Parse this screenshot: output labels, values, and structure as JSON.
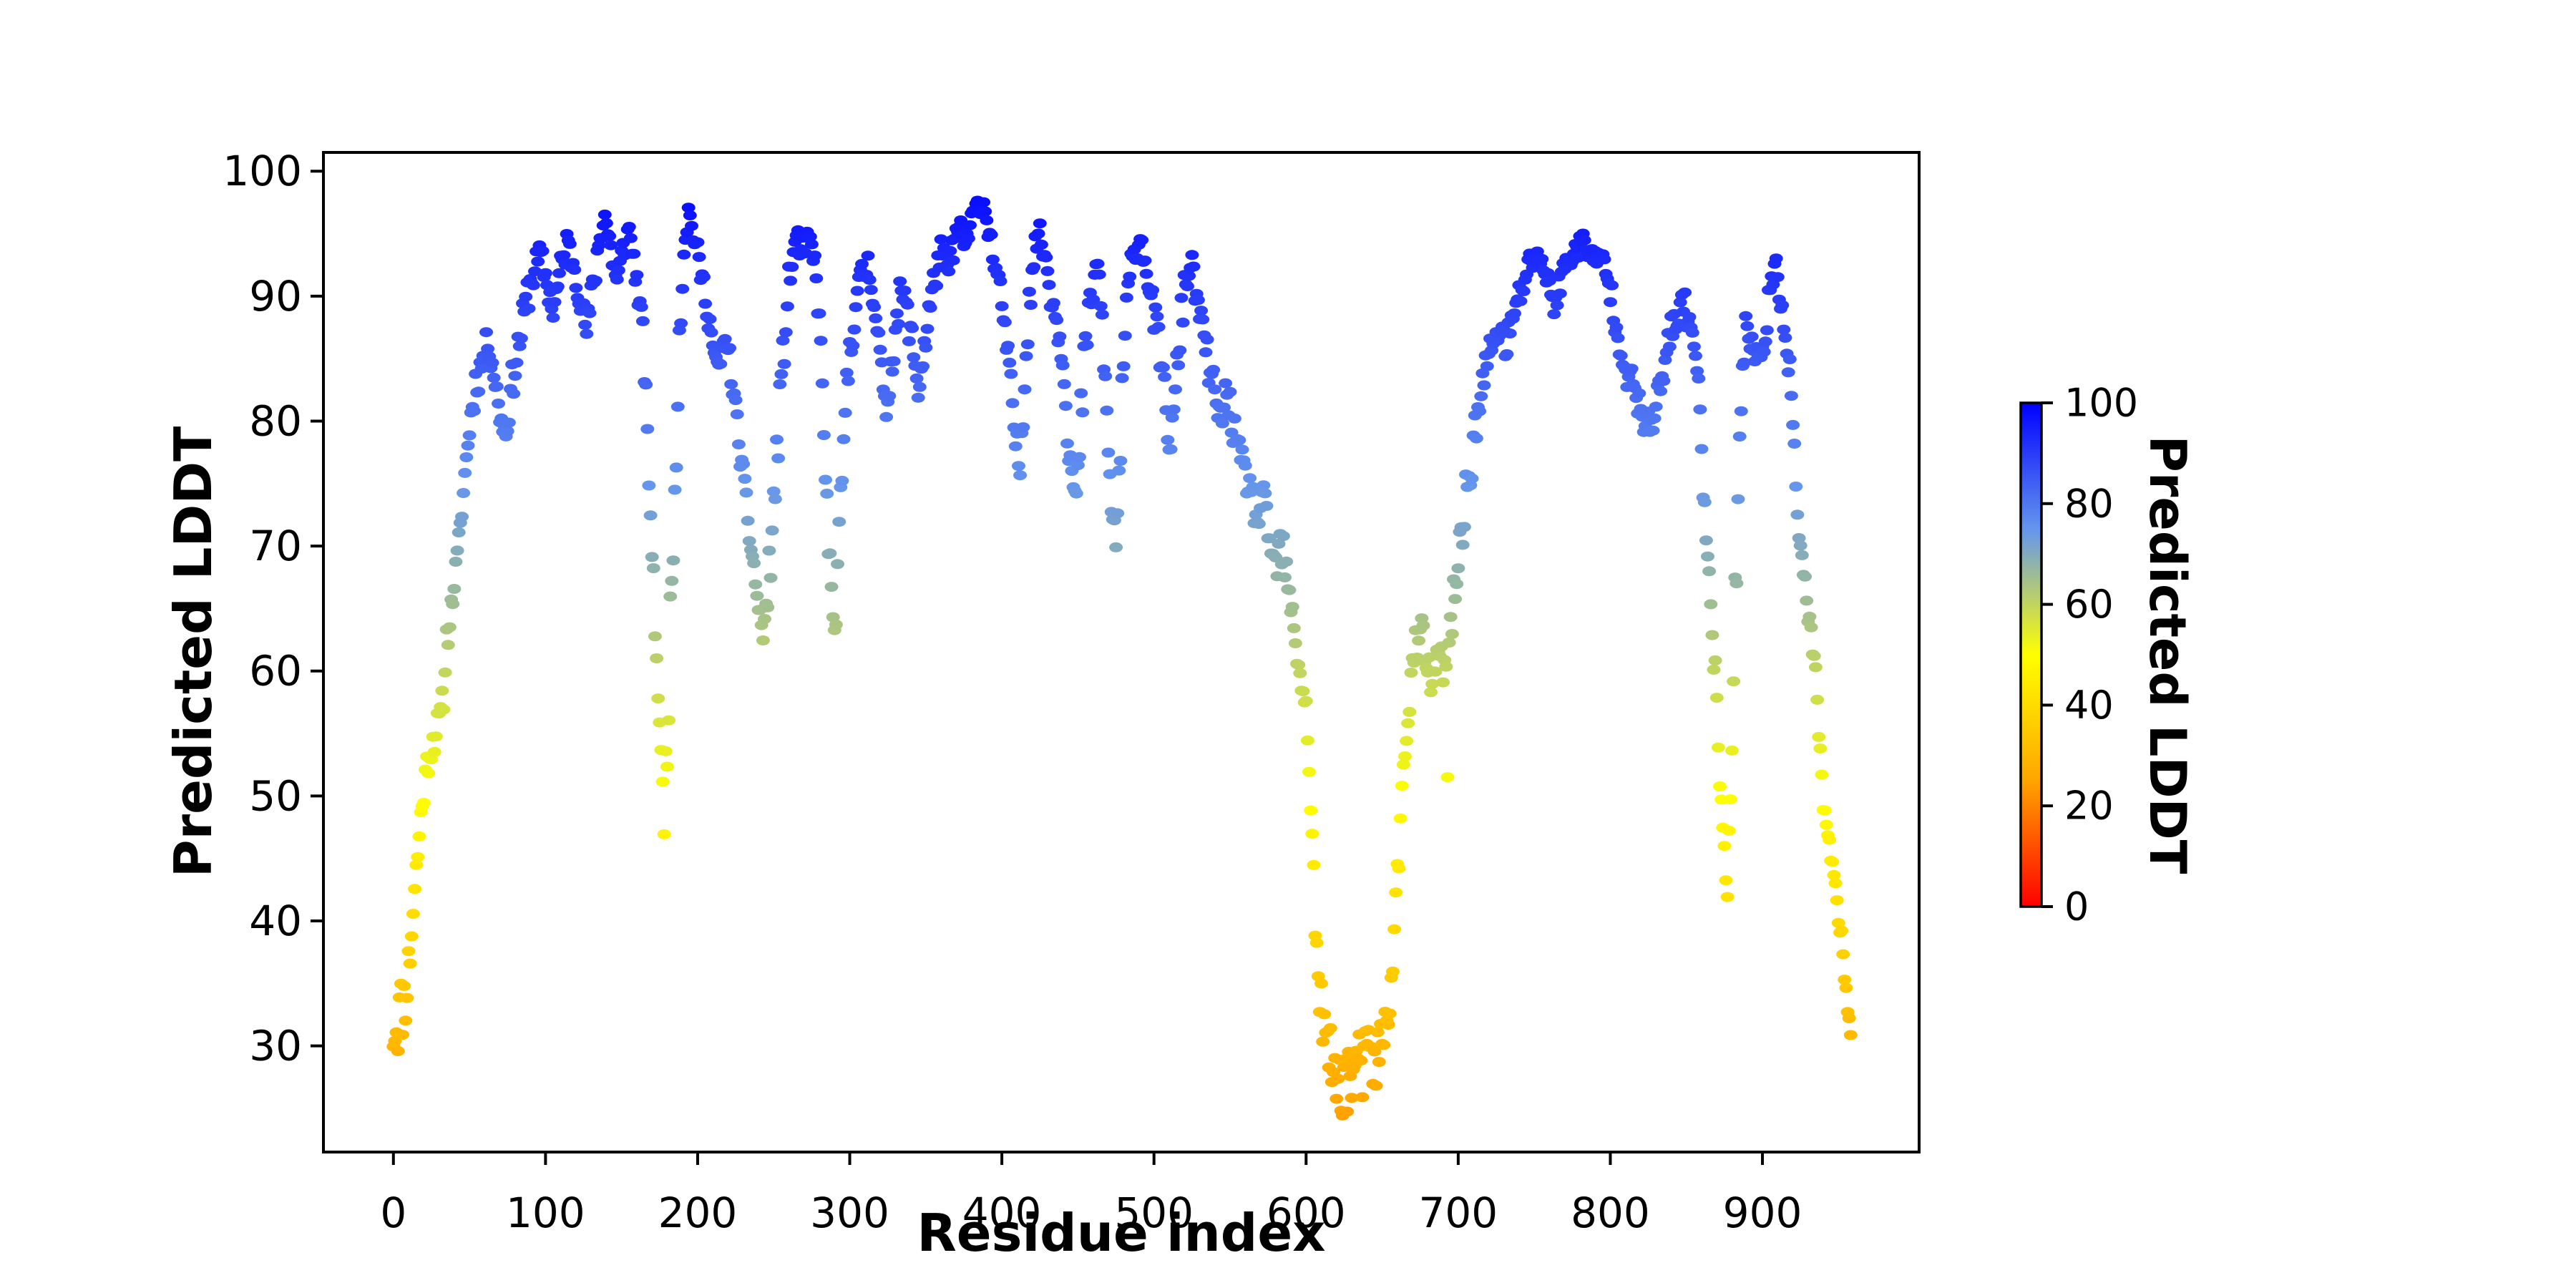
{
  "figure": {
    "background_color": "#ffffff",
    "axes": {
      "xlabel": "Residue index",
      "ylabel": "Predicted LDDT",
      "xlim": [
        -46,
        1003
      ],
      "ylim": [
        21.5,
        101.5
      ],
      "x_tick_values": [
        0,
        100,
        200,
        300,
        400,
        500,
        600,
        700,
        800,
        900
      ],
      "x_tick_labels": [
        "0",
        "100",
        "200",
        "300",
        "400",
        "500",
        "600",
        "700",
        "800",
        "900"
      ],
      "y_tick_values": [
        30,
        40,
        50,
        60,
        70,
        80,
        90,
        100
      ],
      "y_tick_labels": [
        "30",
        "40",
        "50",
        "60",
        "70",
        "80",
        "90",
        "100"
      ],
      "grid": false
    },
    "colorbar": {
      "label": "Predicted LDDT",
      "vmin": 0,
      "vmax": 100,
      "tick_values": [
        0,
        20,
        40,
        60,
        80,
        100
      ],
      "tick_labels": [
        "0",
        "20",
        "40",
        "60",
        "80",
        "100"
      ],
      "colormap_stops": [
        {
          "t": 0.0,
          "color": "#ff0000"
        },
        {
          "t": 0.25,
          "color": "#ffa500"
        },
        {
          "t": 0.5,
          "color": "#ffff00"
        },
        {
          "t": 0.75,
          "color": "#6495ed"
        },
        {
          "t": 1.0,
          "color": "#0000ff"
        }
      ]
    }
  },
  "chart_data": {
    "type": "scatter",
    "title": "",
    "xlabel": "Residue index",
    "ylabel": "Predicted LDDT",
    "legend": "none (colorbar encodes point value)",
    "n_points": 959,
    "x_data_range": [
      0,
      958
    ],
    "y_min_observed": 24.3,
    "y_max_observed": 97.9,
    "marker": {
      "rx": 9.5,
      "ry": 7.0
    },
    "color_encoding": "each point colored by its Predicted LDDT value via colorbar colormap",
    "seed": 11,
    "keyframes_format": "[residue_index, mean_plddt, half_spread] - per-residue values are piecewise-linear interpolation of mean with uniform jitter of +/- half_spread",
    "keyframes": [
      [
        0,
        31.5,
        3
      ],
      [
        4,
        32.5,
        3.2
      ],
      [
        8,
        34,
        2.5
      ],
      [
        11,
        37.5,
        2
      ],
      [
        13,
        41,
        1.5
      ],
      [
        16,
        45.5,
        1.8
      ],
      [
        19,
        49.5,
        1.5
      ],
      [
        22,
        52.5,
        1.2
      ],
      [
        26,
        54.5,
        1.5
      ],
      [
        30,
        55.8,
        1.3
      ],
      [
        33,
        58,
        1.2
      ],
      [
        35,
        62.5,
        1.5
      ],
      [
        38,
        65,
        1
      ],
      [
        41,
        68,
        1
      ],
      [
        44,
        71.5,
        0.8
      ],
      [
        47,
        75.7,
        0.8
      ],
      [
        50,
        79.5,
        1.3
      ],
      [
        54,
        83,
        1.5
      ],
      [
        58,
        84.5,
        1.5
      ],
      [
        62,
        86.5,
        1
      ],
      [
        66,
        84,
        1.2
      ],
      [
        70,
        80.5,
        1
      ],
      [
        74,
        79,
        1
      ],
      [
        78,
        83,
        1.6
      ],
      [
        83,
        86.5,
        1.6
      ],
      [
        88,
        90,
        1.6
      ],
      [
        93,
        92.3,
        1.4
      ],
      [
        97,
        93.3,
        1
      ],
      [
        101,
        91,
        1.3
      ],
      [
        105,
        88.8,
        1
      ],
      [
        109,
        91.5,
        1.5
      ],
      [
        114,
        94.2,
        1.4
      ],
      [
        119,
        92.5,
        1.4
      ],
      [
        123,
        89.8,
        1.2
      ],
      [
        127,
        87.2,
        1
      ],
      [
        131,
        90.5,
        1.6
      ],
      [
        136,
        95,
        1.4
      ],
      [
        139,
        96.5,
        0.8
      ],
      [
        143,
        93.8,
        1.4
      ],
      [
        147,
        91,
        1.2
      ],
      [
        151,
        93.5,
        1.5
      ],
      [
        155,
        95.3,
        1
      ],
      [
        158,
        93,
        1
      ],
      [
        161,
        90,
        1
      ],
      [
        164,
        87.5,
        0.8
      ],
      [
        166,
        81,
        2
      ],
      [
        168,
        75.5,
        1.2
      ],
      [
        170,
        70,
        2
      ],
      [
        172,
        63.5,
        1
      ],
      [
        174,
        58.5,
        1
      ],
      [
        176,
        52.5,
        1.5
      ],
      [
        178,
        49,
        2.5
      ],
      [
        180,
        55,
        3
      ],
      [
        182,
        63,
        3
      ],
      [
        185,
        75,
        3
      ],
      [
        188,
        87,
        2.5
      ],
      [
        191,
        94,
        1.5
      ],
      [
        194,
        96.8,
        0.8
      ],
      [
        198,
        94.5,
        1
      ],
      [
        202,
        92,
        1.2
      ],
      [
        206,
        89.5,
        1.2
      ],
      [
        210,
        86,
        1.5
      ],
      [
        213,
        83.5,
        1.5
      ],
      [
        216,
        85.5,
        1
      ],
      [
        219,
        86.5,
        1
      ],
      [
        222,
        84,
        1.2
      ],
      [
        225,
        80.5,
        1.5
      ],
      [
        228,
        77.5,
        1.2
      ],
      [
        231,
        74.5,
        1
      ],
      [
        234,
        71,
        1.2
      ],
      [
        237,
        68.3,
        1
      ],
      [
        240,
        65,
        1.5
      ],
      [
        243,
        62.8,
        0.8
      ],
      [
        246,
        66,
        2
      ],
      [
        249,
        71,
        2
      ],
      [
        252,
        77,
        2.5
      ],
      [
        255,
        83,
        2
      ],
      [
        258,
        88,
        2
      ],
      [
        261,
        92,
        1.6
      ],
      [
        265,
        94.8,
        1
      ],
      [
        269,
        93.5,
        1.2
      ],
      [
        273,
        94.5,
        1
      ],
      [
        277,
        92.5,
        1.2
      ],
      [
        280,
        88.5,
        1.5
      ],
      [
        282,
        82,
        2
      ],
      [
        284,
        76,
        1.5
      ],
      [
        286,
        70.5,
        1.5
      ],
      [
        288,
        66,
        1.2
      ],
      [
        290,
        63,
        0.8
      ],
      [
        292,
        67,
        2
      ],
      [
        294,
        73,
        2
      ],
      [
        297,
        80,
        2.5
      ],
      [
        300,
        86,
        2
      ],
      [
        304,
        89.5,
        1.6
      ],
      [
        308,
        91.5,
        1.4
      ],
      [
        312,
        92.5,
        1.4
      ],
      [
        316,
        90,
        1.4
      ],
      [
        320,
        85,
        1.8
      ],
      [
        323,
        80.5,
        1.6
      ],
      [
        326,
        83,
        1.6
      ],
      [
        330,
        87.5,
        1.6
      ],
      [
        334,
        90.5,
        1.4
      ],
      [
        338,
        88.5,
        1.4
      ],
      [
        342,
        85.5,
        1.6
      ],
      [
        345,
        82.5,
        1.4
      ],
      [
        348,
        85,
        1.6
      ],
      [
        352,
        88.5,
        1.6
      ],
      [
        356,
        91.5,
        1.4
      ],
      [
        360,
        93.5,
        1.2
      ],
      [
        364,
        92,
        1.2
      ],
      [
        368,
        94,
        1.2
      ],
      [
        372,
        95.5,
        1
      ],
      [
        376,
        94,
        1
      ],
      [
        380,
        96,
        1
      ],
      [
        384,
        97.2,
        0.8
      ],
      [
        388,
        97.4,
        0.7
      ],
      [
        392,
        95,
        1
      ],
      [
        396,
        92,
        1.2
      ],
      [
        400,
        89.5,
        1.2
      ],
      [
        403,
        86,
        1.2
      ],
      [
        406,
        82.5,
        1.5
      ],
      [
        409,
        78.5,
        1.5
      ],
      [
        412,
        76,
        1.2
      ],
      [
        414,
        82,
        2.5
      ],
      [
        417,
        88,
        2
      ],
      [
        420,
        92.5,
        1.6
      ],
      [
        424,
        95.2,
        1
      ],
      [
        428,
        93.5,
        1.2
      ],
      [
        432,
        90.5,
        1.4
      ],
      [
        436,
        88,
        1.4
      ],
      [
        440,
        85.5,
        1.4
      ],
      [
        443,
        80,
        2
      ],
      [
        446,
        75.5,
        1.5
      ],
      [
        449,
        73.5,
        1
      ],
      [
        452,
        80,
        2.5
      ],
      [
        455,
        86,
        2
      ],
      [
        459,
        90,
        1.6
      ],
      [
        463,
        92.5,
        1.2
      ],
      [
        466,
        88,
        1.5
      ],
      [
        469,
        80,
        2
      ],
      [
        472,
        73,
        2
      ],
      [
        475,
        70.5,
        1.5
      ],
      [
        478,
        78,
        3
      ],
      [
        481,
        87,
        2
      ],
      [
        484,
        91.5,
        1.5
      ],
      [
        488,
        94,
        1.2
      ],
      [
        492,
        94.5,
        1
      ],
      [
        496,
        91.5,
        1.4
      ],
      [
        500,
        88.5,
        1.4
      ],
      [
        504,
        85.5,
        1.4
      ],
      [
        508,
        81,
        1.8
      ],
      [
        511,
        77.5,
        1.5
      ],
      [
        514,
        82,
        2
      ],
      [
        517,
        87,
        2
      ],
      [
        520,
        90.5,
        1.6
      ],
      [
        524,
        92.8,
        1.2
      ],
      [
        528,
        90,
        1.4
      ],
      [
        532,
        87,
        1.4
      ],
      [
        536,
        84.5,
        1.5
      ],
      [
        540,
        82,
        1.5
      ],
      [
        544,
        80,
        1.5
      ],
      [
        548,
        82.5,
        1.5
      ],
      [
        552,
        79.5,
        1.5
      ],
      [
        556,
        77,
        1.5
      ],
      [
        560,
        75.8,
        1.2
      ],
      [
        564,
        74,
        1.5
      ],
      [
        568,
        72,
        1.5
      ],
      [
        572,
        73.5,
        1.5
      ],
      [
        576,
        70.5,
        1.5
      ],
      [
        580,
        68,
        1.5
      ],
      [
        584,
        70,
        2.5
      ],
      [
        588,
        66.5,
        1.2
      ],
      [
        591,
        64.5,
        1
      ],
      [
        594,
        61.5,
        1.5
      ],
      [
        597,
        59,
        1
      ],
      [
        600,
        57,
        1
      ],
      [
        602,
        52.5,
        1.2
      ],
      [
        604,
        46.5,
        1.5
      ],
      [
        606,
        40,
        2
      ],
      [
        608,
        35,
        1.5
      ],
      [
        612,
        31,
        2.5
      ],
      [
        616,
        28.5,
        3
      ],
      [
        622,
        27,
        2.8
      ],
      [
        628,
        27.5,
        3
      ],
      [
        634,
        28,
        3
      ],
      [
        640,
        28.5,
        3.2
      ],
      [
        646,
        29,
        3
      ],
      [
        650,
        30,
        2.5
      ],
      [
        654,
        32.5,
        2
      ],
      [
        656,
        35.5,
        1.5
      ],
      [
        658,
        39,
        1.5
      ],
      [
        660,
        43.5,
        1.5
      ],
      [
        662,
        47.5,
        1.5
      ],
      [
        664,
        52,
        1.5
      ],
      [
        666,
        55.5,
        1.5
      ],
      [
        668,
        58,
        1.5
      ],
      [
        671,
        61,
        2
      ],
      [
        674,
        63,
        2
      ],
      [
        677,
        62,
        2
      ],
      [
        680,
        60,
        1.8
      ],
      [
        683,
        59,
        1.5
      ],
      [
        686,
        60.5,
        1.5
      ],
      [
        689,
        61,
        1.5
      ],
      [
        692,
        59.5,
        2
      ],
      [
        695,
        63,
        2
      ],
      [
        698,
        66.5,
        2
      ],
      [
        701,
        70,
        2
      ],
      [
        704,
        73,
        2
      ],
      [
        707,
        75.5,
        2
      ],
      [
        711,
        79,
        2
      ],
      [
        715,
        82,
        1.8
      ],
      [
        719,
        84.5,
        1.6
      ],
      [
        723,
        86.5,
        1.4
      ],
      [
        727,
        87.5,
        1.4
      ],
      [
        731,
        86,
        1.4
      ],
      [
        735,
        87.5,
        1.4
      ],
      [
        739,
        89.5,
        1.4
      ],
      [
        743,
        91,
        1.2
      ],
      [
        747,
        92.5,
        1.2
      ],
      [
        751,
        93.5,
        1
      ],
      [
        755,
        92.8,
        1
      ],
      [
        759,
        91,
        1.2
      ],
      [
        763,
        89.5,
        1.2
      ],
      [
        767,
        91,
        1.2
      ],
      [
        771,
        92.5,
        1.2
      ],
      [
        775,
        93.5,
        1
      ],
      [
        779,
        94,
        1
      ],
      [
        783,
        94.3,
        1
      ],
      [
        787,
        93.5,
        1
      ],
      [
        791,
        92.5,
        1.2
      ],
      [
        795,
        93,
        1.2
      ],
      [
        799,
        91,
        1.2
      ],
      [
        803,
        88.5,
        1.4
      ],
      [
        807,
        86,
        1.4
      ],
      [
        811,
        84,
        1.4
      ],
      [
        815,
        82.5,
        1.4
      ],
      [
        819,
        81,
        1.4
      ],
      [
        823,
        80,
        1.2
      ],
      [
        827,
        79.5,
        1
      ],
      [
        831,
        81.5,
        1.5
      ],
      [
        835,
        84,
        1.6
      ],
      [
        839,
        86.5,
        1.6
      ],
      [
        843,
        88,
        1.4
      ],
      [
        847,
        89.5,
        1.4
      ],
      [
        851,
        88.5,
        1.4
      ],
      [
        855,
        86.5,
        1.4
      ],
      [
        858,
        82,
        2
      ],
      [
        860,
        77,
        2
      ],
      [
        862,
        73.5,
        0.9
      ],
      [
        864,
        69.5,
        2
      ],
      [
        866,
        65.8,
        0.9
      ],
      [
        868,
        61.5,
        1.5
      ],
      [
        870,
        57,
        2
      ],
      [
        872,
        52.5,
        2.5
      ],
      [
        874,
        48.5,
        1.2
      ],
      [
        876,
        44,
        1.5
      ],
      [
        877,
        41.5,
        0.8
      ],
      [
        879,
        50,
        3
      ],
      [
        881,
        60,
        3
      ],
      [
        883,
        70,
        3
      ],
      [
        885,
        79,
        2.5
      ],
      [
        887,
        84,
        1.8
      ],
      [
        889,
        87.5,
        1.4
      ],
      [
        893,
        86,
        1.4
      ],
      [
        897,
        84.5,
        1.4
      ],
      [
        901,
        87,
        1.6
      ],
      [
        905,
        90,
        1.5
      ],
      [
        909,
        91.8,
        1.3
      ],
      [
        913,
        89.5,
        1.4
      ],
      [
        916,
        86.5,
        1.4
      ],
      [
        919,
        82,
        2
      ],
      [
        921,
        76.5,
        2
      ],
      [
        923,
        72.5,
        1.2
      ],
      [
        925,
        70,
        1.2
      ],
      [
        927,
        68,
        1
      ],
      [
        929,
        65.8,
        1
      ],
      [
        931,
        63.5,
        1
      ],
      [
        933,
        61.5,
        1
      ],
      [
        935,
        59.8,
        1
      ],
      [
        937,
        55.5,
        1.5
      ],
      [
        939,
        51,
        0.8
      ],
      [
        941,
        48.5,
        1
      ],
      [
        943,
        46.5,
        1
      ],
      [
        945,
        44.8,
        1
      ],
      [
        947,
        43,
        0.8
      ],
      [
        949,
        41.8,
        0.8
      ],
      [
        951,
        39.5,
        1
      ],
      [
        953,
        37.2,
        1
      ],
      [
        955,
        35,
        1
      ],
      [
        956,
        33.5,
        1
      ],
      [
        957,
        32,
        1
      ],
      [
        958,
        30.3,
        0.8
      ]
    ],
    "outliers": [
      [
        693,
        51.5
      ]
    ]
  }
}
